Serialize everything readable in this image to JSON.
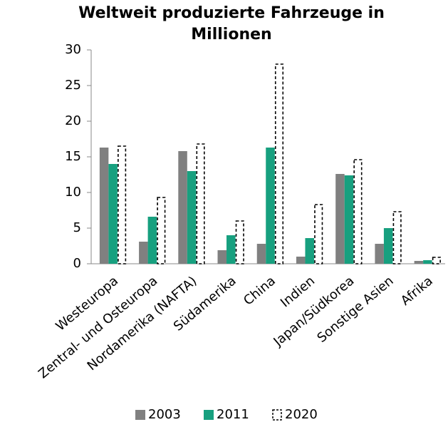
{
  "chart_data": {
    "type": "bar",
    "title": "Weltweit produzierte Fahrzeuge in Millionen",
    "categories": [
      "Westeuropa",
      "Zentral- und Osteuropa",
      "Nordamerika (NAFTA)",
      "Südamerika",
      "China",
      "Indien",
      "Japan/Südkorea",
      "Sonstige Asien",
      "Afrika"
    ],
    "series": [
      {
        "name": "2003",
        "color": "#808080",
        "style": "solid",
        "values": [
          16.3,
          3.1,
          15.8,
          1.9,
          2.8,
          1.0,
          12.6,
          2.8,
          0.4
        ]
      },
      {
        "name": "2011",
        "color": "#17a07f",
        "style": "solid",
        "values": [
          14.0,
          6.6,
          13.0,
          4.0,
          16.3,
          3.6,
          12.4,
          5.0,
          0.5
        ]
      },
      {
        "name": "2020",
        "color": "#000000",
        "style": "dashed",
        "values": [
          16.5,
          9.3,
          16.8,
          6.0,
          28.0,
          8.3,
          14.6,
          7.3,
          0.9
        ]
      }
    ],
    "ylim": [
      0,
      30
    ],
    "yticks": [
      0,
      5,
      10,
      15,
      20,
      25,
      30
    ],
    "grid": false,
    "legend": "bottom"
  }
}
